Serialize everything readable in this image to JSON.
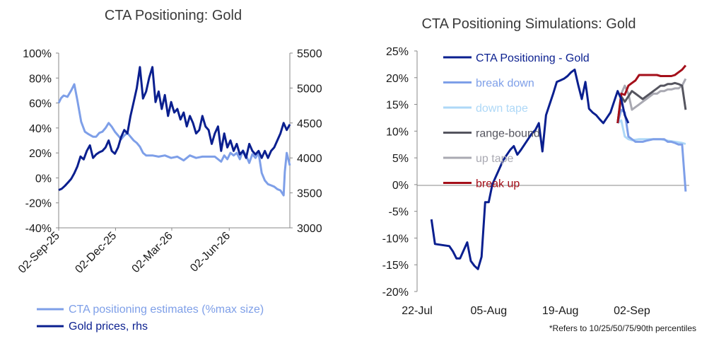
{
  "left_chart": {
    "title": "CTA Positioning: Gold",
    "legend": [
      "CTA positioning estimates (%max size)",
      "Gold prices, rhs"
    ]
  },
  "right_chart": {
    "title": "CTA Positioning Simulations: Gold",
    "footnote": "*Refers to 10/25/50/75/90th percentiles"
  },
  "colors": {
    "positioning": "#7e9fe8",
    "gold": "#0a1f8f",
    "cta": "#0a1f8f",
    "break_down": "#7e9fe8",
    "down_tape": "#aed8f7",
    "range_bound": "#55555f",
    "up_tape": "#a9a9b2",
    "break_up": "#a40f1a"
  },
  "chart_data": [
    {
      "type": "line",
      "title": "CTA Positioning: Gold",
      "x_ticks": [
        "02-Sep-25",
        "02-Dec-25",
        "02-Mar-26",
        "02-Jun-26"
      ],
      "x_tick_index": [
        0,
        91,
        181,
        273
      ],
      "y_left": {
        "ticks": [
          "100%",
          "80%",
          "60%",
          "40%",
          "20%",
          "0%",
          "-20%",
          "-40%"
        ],
        "ylim": [
          -40,
          100
        ]
      },
      "y_right": {
        "ticks": [
          "5500",
          "5000",
          "4500",
          "4000",
          "3500",
          "3000"
        ],
        "ylim": [
          3000,
          5500
        ]
      },
      "grid": false,
      "series": [
        {
          "name": "CTA positioning estimates (%max size)",
          "axis": "left",
          "x": [
            0,
            4,
            8,
            14,
            20,
            25,
            30,
            36,
            42,
            48,
            55,
            60,
            65,
            70,
            75,
            80,
            85,
            90,
            95,
            100,
            105,
            110,
            115,
            120,
            125,
            130,
            135,
            140,
            150,
            160,
            170,
            180,
            190,
            200,
            210,
            220,
            230,
            240,
            250,
            255,
            260,
            265,
            270,
            275,
            280,
            285,
            290,
            295,
            300,
            305,
            310,
            315,
            320,
            325,
            330,
            335,
            340,
            345,
            350,
            355,
            360,
            362,
            365,
            370
          ],
          "values": [
            60,
            64,
            66,
            65,
            70,
            75,
            62,
            45,
            37,
            35,
            33,
            33,
            36,
            37,
            40,
            44,
            41,
            37,
            34,
            31,
            34,
            36,
            33,
            30,
            28,
            25,
            20,
            18,
            18,
            17,
            18,
            16,
            17,
            14,
            18,
            16,
            17,
            17,
            17,
            15,
            13,
            18,
            15,
            20,
            18,
            20,
            15,
            22,
            18,
            12,
            19,
            16,
            20,
            4,
            -2,
            -5,
            -6,
            -7,
            -9,
            -10,
            -14,
            5,
            20,
            10
          ]
        },
        {
          "name": "Gold prices, rhs",
          "axis": "right",
          "x": [
            0,
            5,
            10,
            15,
            20,
            25,
            30,
            35,
            40,
            45,
            50,
            55,
            60,
            65,
            70,
            75,
            80,
            85,
            90,
            95,
            100,
            105,
            110,
            115,
            120,
            125,
            130,
            135,
            140,
            145,
            150,
            155,
            160,
            165,
            170,
            175,
            180,
            185,
            190,
            195,
            200,
            205,
            210,
            215,
            220,
            225,
            230,
            235,
            240,
            245,
            250,
            255,
            260,
            265,
            270,
            275,
            280,
            285,
            290,
            295,
            300,
            305,
            310,
            315,
            320,
            325,
            330,
            335,
            340,
            345,
            350,
            355,
            360,
            365,
            370
          ],
          "values": [
            3540,
            3560,
            3600,
            3650,
            3700,
            3780,
            3880,
            4020,
            3980,
            4100,
            4180,
            4000,
            4050,
            4080,
            4100,
            4150,
            4250,
            4100,
            4060,
            4150,
            4300,
            4400,
            4350,
            4600,
            4800,
            5000,
            5300,
            4850,
            4950,
            5150,
            5300,
            4800,
            4950,
            4700,
            4900,
            4600,
            4800,
            4650,
            4700,
            4550,
            4650,
            4450,
            4600,
            4500,
            4350,
            4400,
            4600,
            4450,
            4400,
            4200,
            4350,
            4450,
            4100,
            4350,
            4150,
            4250,
            4100,
            4200,
            4050,
            4100,
            4000,
            4200,
            4100,
            4050,
            4100,
            4000,
            4100,
            4000,
            4100,
            4150,
            4250,
            4350,
            4500,
            4400,
            4480
          ]
        }
      ],
      "legend": [
        "CTA positioning estimates (%max size)",
        "Gold prices, rhs"
      ],
      "legend_position": "bottom"
    },
    {
      "type": "line",
      "title": "CTA Positioning Simulations: Gold",
      "x_ticks": [
        "22-Jul",
        "05-Aug",
        "19-Aug",
        "02-Sep"
      ],
      "x_tick_index": [
        0,
        10,
        20,
        30
      ],
      "y": {
        "ticks": [
          "25%",
          "20%",
          "15%",
          "10%",
          "5%",
          "0%",
          "-5%",
          "-10%",
          "-15%",
          "-20%"
        ],
        "ylim": [
          -20,
          25
        ]
      },
      "grid": false,
      "series": [
        {
          "name": "CTA Positioning - Gold",
          "x": [
            2.0,
            2.5,
            4.5,
            5.0,
            5.5,
            6.0,
            7.0,
            7.5,
            8.0,
            8.5,
            9.0,
            9.5,
            10.0,
            10.5,
            11.0,
            11.5,
            12.0,
            12.5,
            13.0,
            13.5,
            14.0,
            14.5,
            15.0,
            15.5,
            16.0,
            16.5,
            17.0,
            17.5,
            18.0,
            18.5,
            19.0,
            19.5,
            20.0,
            20.5,
            21.0,
            21.5,
            22.0,
            22.5,
            23.0,
            23.5,
            24.0,
            24.5,
            25.0,
            25.5,
            26.0,
            26.5,
            27.0,
            27.5,
            28.0,
            28.5,
            29.0,
            29.5
          ],
          "values": [
            -6.5,
            -11.1,
            -11.5,
            -12.5,
            -13.8,
            -13.8,
            -10.8,
            -14.3,
            -15.2,
            -15.8,
            -13.5,
            -3.3,
            -3.3,
            0.0,
            1.5,
            3.0,
            4.5,
            5.5,
            6.5,
            7.2,
            5.6,
            6.5,
            7.5,
            8.5,
            9.5,
            10.2,
            11.5,
            6.2,
            13.0,
            15.0,
            17.0,
            19.2,
            19.5,
            19.8,
            20.3,
            21.0,
            21.5,
            18.6,
            16.0,
            19.2,
            14.2,
            13.5,
            13.0,
            12.2,
            11.5,
            12.5,
            13.5,
            15.5,
            17.5,
            16.0,
            13.0,
            11.5
          ]
        },
        {
          "name": "break down",
          "x": [
            28.0,
            28.5,
            29.0,
            29.5,
            30.0,
            30.5,
            31.0,
            31.5,
            32.0,
            33.0,
            33.5,
            34.0,
            34.5,
            35.0,
            35.5,
            36.0,
            36.5,
            37.0,
            37.5
          ],
          "values": [
            11.5,
            14.0,
            13.5,
            9.0,
            8.5,
            8.0,
            8.0,
            8.0,
            8.2,
            8.5,
            8.5,
            8.5,
            8.5,
            8.0,
            8.0,
            7.8,
            7.5,
            7.5,
            -1.3
          ]
        },
        {
          "name": "down tape",
          "x": [
            28.0,
            28.5,
            29.0,
            29.5,
            30.0,
            31.0,
            32.0,
            33.0,
            34.0,
            35.0,
            36.0,
            37.0,
            37.5
          ],
          "values": [
            11.5,
            12.0,
            9.0,
            8.5,
            8.3,
            8.5,
            8.5,
            8.5,
            8.5,
            8.2,
            8.0,
            7.8,
            7.6
          ]
        },
        {
          "name": "range-bound",
          "x": [
            28.0,
            28.5,
            29.0,
            29.5,
            30.0,
            30.5,
            31.0,
            31.5,
            32.0,
            32.5,
            33.0,
            33.5,
            34.0,
            34.5,
            35.0,
            35.5,
            36.0,
            36.5,
            37.0,
            37.5
          ],
          "values": [
            11.5,
            16.5,
            15.5,
            16.5,
            17.5,
            17.0,
            16.5,
            16.0,
            16.5,
            17.0,
            17.5,
            18.0,
            18.5,
            18.5,
            18.8,
            18.8,
            19.0,
            18.8,
            18.5,
            14.0
          ]
        },
        {
          "name": "up tape",
          "x": [
            28.0,
            28.5,
            29.0,
            29.5,
            30.0,
            30.5,
            31.0,
            31.5,
            32.0,
            32.5,
            33.0,
            33.5,
            34.0,
            34.5,
            35.0,
            35.5,
            36.0,
            36.5,
            37.0,
            37.5
          ],
          "values": [
            11.5,
            17.0,
            18.5,
            17.0,
            14.0,
            14.5,
            15.0,
            15.5,
            16.0,
            16.5,
            17.0,
            17.0,
            17.5,
            17.5,
            17.8,
            17.8,
            18.0,
            18.0,
            18.5,
            19.8
          ]
        },
        {
          "name": "break up",
          "x": [
            28.0,
            28.5,
            29.0,
            29.5,
            30.0,
            30.5,
            31.0,
            31.5,
            32.0,
            32.5,
            33.0,
            33.5,
            34.0,
            34.5,
            35.0,
            35.5,
            36.0,
            36.5,
            37.0,
            37.5
          ],
          "values": [
            11.5,
            17.0,
            16.8,
            18.5,
            19.0,
            19.5,
            20.5,
            20.5,
            20.5,
            20.5,
            20.5,
            20.5,
            20.3,
            20.3,
            20.3,
            20.3,
            20.5,
            21.0,
            21.5,
            22.3
          ]
        }
      ],
      "legend": [
        "CTA Positioning - Gold",
        "break down",
        "down tape",
        "range-bound",
        "up tape",
        "break up"
      ],
      "legend_position": "top-left"
    }
  ]
}
